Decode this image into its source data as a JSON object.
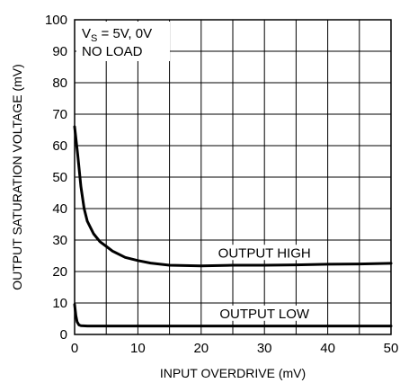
{
  "chart_data": {
    "type": "line",
    "xlabel": "INPUT OVERDRIVE (mV)",
    "ylabel": "OUTPUT SATURATION VOLTAGE (mV)",
    "xlim": [
      0,
      50
    ],
    "ylim": [
      0,
      100
    ],
    "x_ticks": [
      0,
      10,
      20,
      30,
      40,
      50
    ],
    "y_ticks": [
      0,
      10,
      20,
      30,
      40,
      50,
      60,
      70,
      80,
      90,
      100
    ],
    "grid": true,
    "conditions": {
      "supply_prefix": "V",
      "supply_subscript": "S",
      "supply_value": " = 5V, 0V",
      "load": "NO LOAD"
    },
    "series": [
      {
        "name": "OUTPUT HIGH",
        "x": [
          0,
          0.5,
          1,
          1.5,
          2,
          3,
          4,
          5,
          6,
          8,
          10,
          12,
          15,
          20,
          25,
          30,
          35,
          40,
          45,
          50
        ],
        "y": [
          66,
          57,
          47,
          40,
          36,
          32,
          29.5,
          28,
          26.5,
          24.5,
          23.5,
          22.7,
          22,
          21.8,
          22,
          22,
          22.1,
          22.3,
          22.4,
          22.6
        ]
      },
      {
        "name": "OUTPUT LOW",
        "x": [
          0,
          0.2,
          0.4,
          0.7,
          1,
          2,
          5,
          10,
          20,
          30,
          40,
          50
        ],
        "y": [
          9.5,
          6,
          4,
          3,
          2.8,
          2.7,
          2.7,
          2.7,
          2.7,
          2.7,
          2.7,
          2.7
        ]
      }
    ]
  }
}
